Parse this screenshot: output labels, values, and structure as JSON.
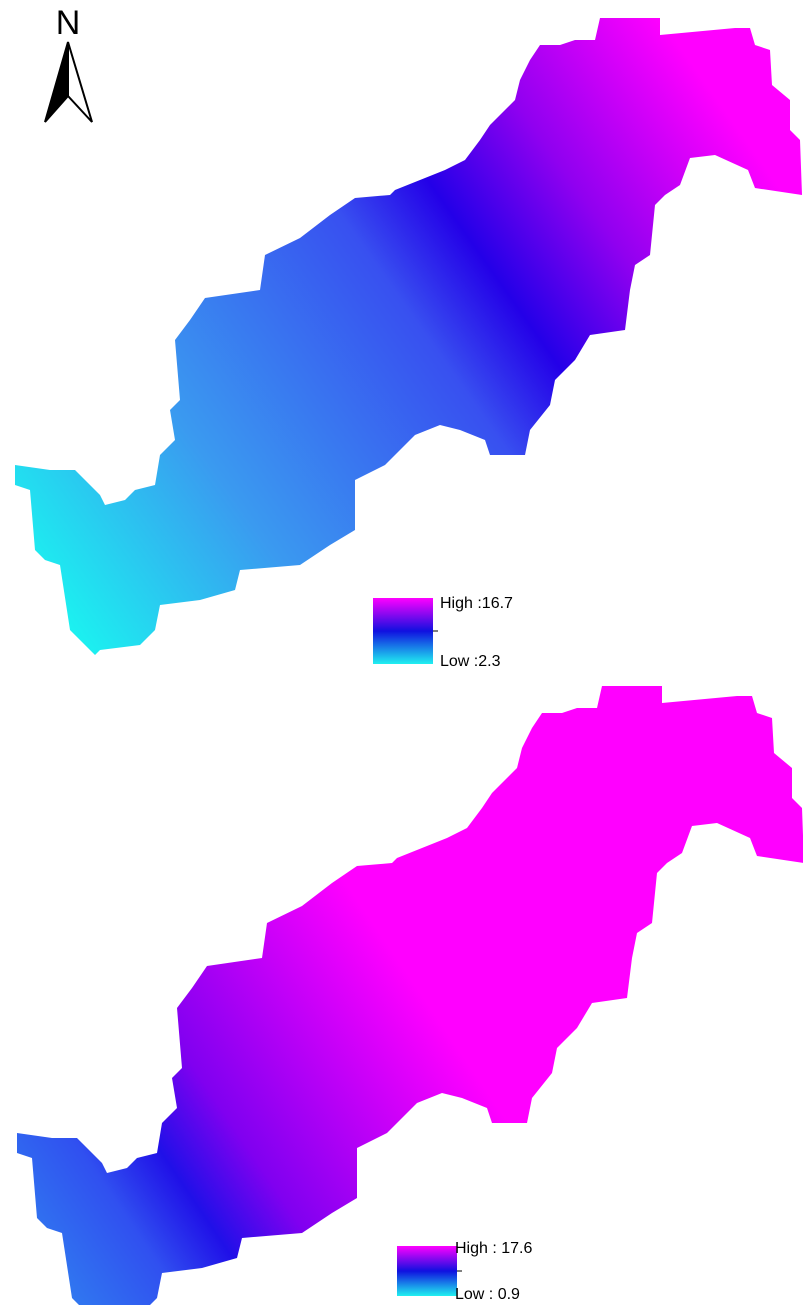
{
  "north_label": "N",
  "maps": [
    {
      "legend": {
        "high": "High :16.7",
        "low": "Low :2.3"
      }
    },
    {
      "legend": {
        "high": "High : 17.6",
        "low": "Low : 0.9"
      }
    }
  ]
}
